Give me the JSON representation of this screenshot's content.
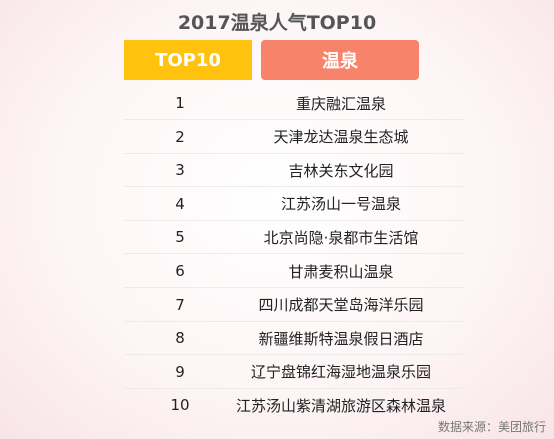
{
  "title": "2017温泉人气TOP10",
  "header": {
    "rank_label": "TOP10",
    "name_label": "温泉"
  },
  "chart_data": {
    "type": "table",
    "title": "2017温泉人气TOP10",
    "columns": [
      "TOP10",
      "温泉"
    ],
    "rows": [
      [
        "1",
        "重庆融汇温泉"
      ],
      [
        "2",
        "天津龙达温泉生态城"
      ],
      [
        "3",
        "吉林关东文化园"
      ],
      [
        "4",
        "江苏汤山一号温泉"
      ],
      [
        "5",
        "北京尚隐·泉都市生活馆"
      ],
      [
        "6",
        "甘肃麦积山温泉"
      ],
      [
        "7",
        "四川成都天堂岛海洋乐园"
      ],
      [
        "8",
        "新疆维斯特温泉假日酒店"
      ],
      [
        "9",
        "辽宁盘锦红海湿地温泉乐园"
      ],
      [
        "10",
        "江苏汤山紫清湖旅游区森林温泉"
      ]
    ]
  },
  "colors": {
    "rank_header": "#ffc20e",
    "name_header": "#f7836a"
  },
  "source": "数据来源：美团旅行"
}
